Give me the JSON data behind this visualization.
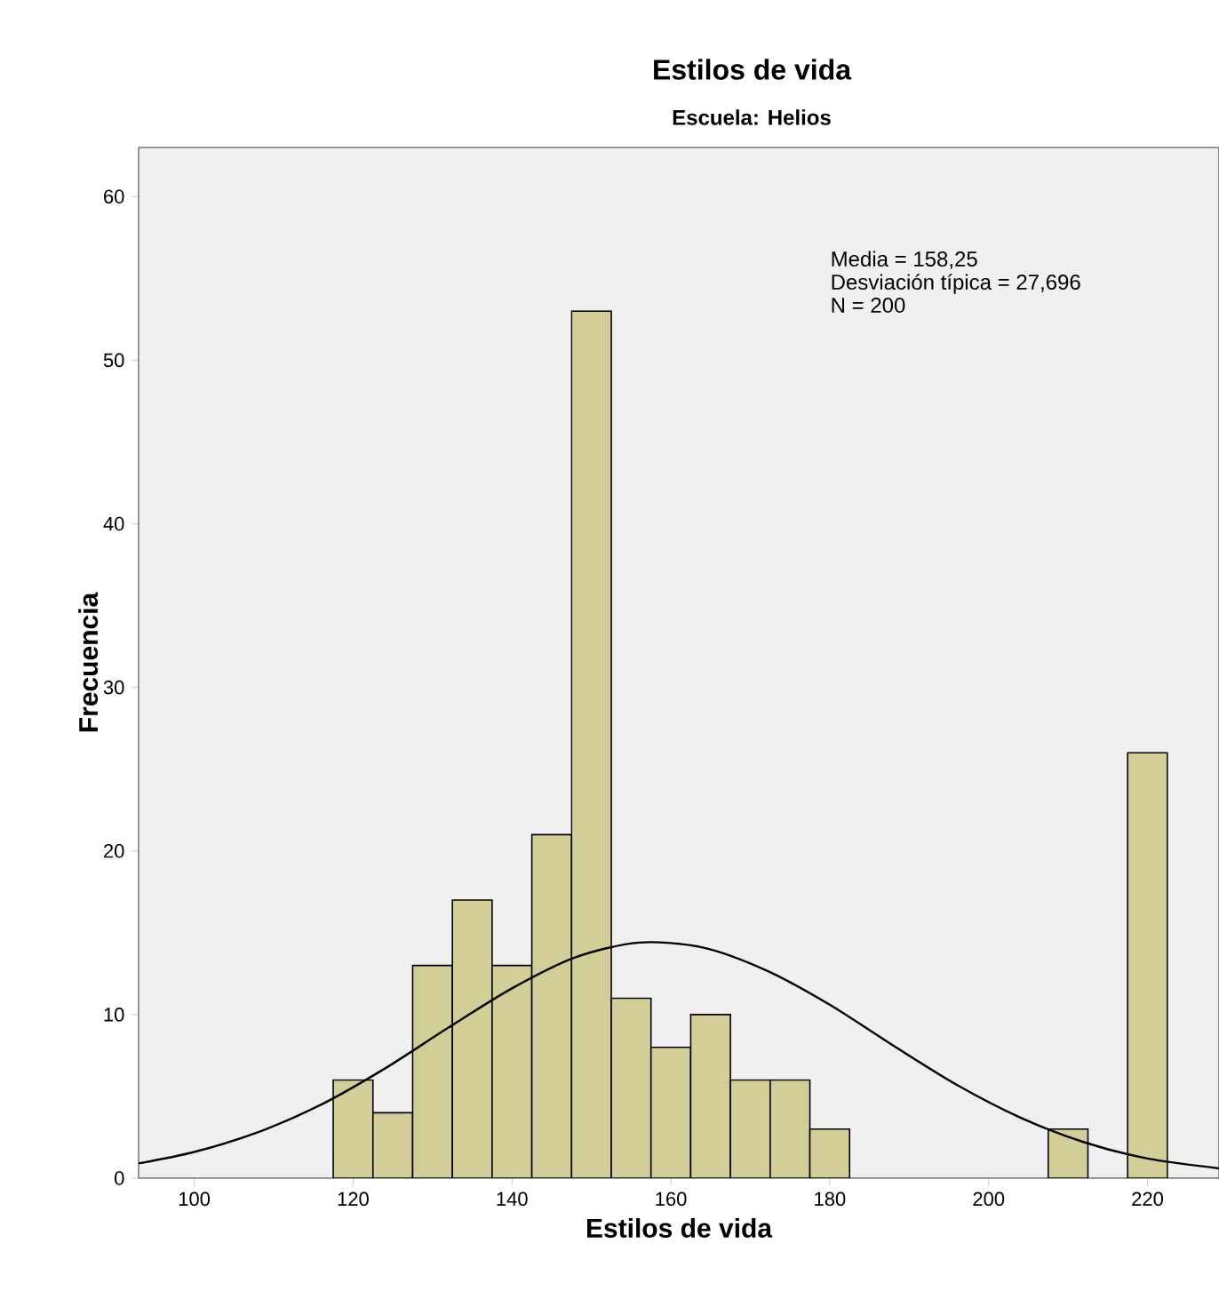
{
  "chart_data": {
    "type": "histogram",
    "title": "Estilos de vida",
    "subtitle": "Escuela: Helios",
    "xlabel": "Estilos de vida",
    "ylabel": "Frecuencia",
    "bins": [
      117.5,
      122.5,
      127.5,
      132.5,
      137.5,
      142.5,
      147.5,
      152.5,
      157.5,
      162.5,
      167.5,
      172.5,
      177.5,
      182.5,
      187.5,
      192.5,
      197.5,
      202.5,
      207.5,
      212.5,
      217.5,
      222.5
    ],
    "values": [
      6,
      4,
      13,
      17,
      13,
      21,
      53,
      11,
      8,
      10,
      6,
      6,
      3,
      0,
      0,
      0,
      0,
      0,
      3,
      0,
      26
    ],
    "color": "#d3ce98",
    "series": [
      {
        "type": "line",
        "color": "#000000",
        "x": [
          93,
          100,
          108,
          116,
          124,
          132,
          140,
          148,
          156,
          164,
          172,
          180,
          188,
          196,
          204,
          212,
          220,
          229
        ],
        "values": [
          0.9,
          1.6,
          2.8,
          4.5,
          6.7,
          9.2,
          11.6,
          13.5,
          14.4,
          14.1,
          12.7,
          10.6,
          8.1,
          5.7,
          3.7,
          2.2,
          1.2,
          0.6
        ]
      }
    ],
    "annotations": [
      "Media = 158,25",
      "Desviación típica = 27,696",
      "N = 200"
    ],
    "xlim": [
      93,
      229
    ],
    "ylim": [
      0,
      63
    ],
    "xticks": [
      100,
      120,
      140,
      160,
      180,
      200,
      220
    ],
    "yticks": [
      0,
      10,
      20,
      30,
      40,
      50,
      60
    ],
    "grid": false
  }
}
